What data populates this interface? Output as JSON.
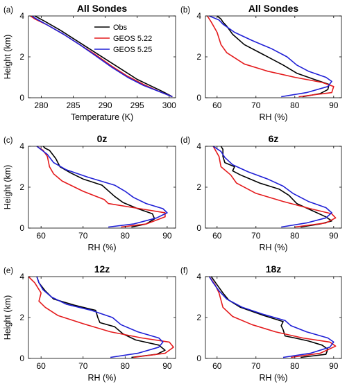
{
  "colors": {
    "Obs": "#000000",
    "GEOS 5.22": "#e41a1c",
    "GEOS 5.25": "#1f1fd6"
  },
  "legend": [
    "Obs",
    "GEOS 5.22",
    "GEOS 5.25"
  ],
  "chart_data": [
    {
      "type": "line",
      "letter": "(a)",
      "title": "All Sondes",
      "xlabel": "Temperature (K)",
      "ylabel": "Height (km)",
      "xlim": [
        278,
        301
      ],
      "ylim": [
        0,
        4
      ],
      "xticks": [
        280,
        285,
        290,
        295,
        300
      ],
      "yticks": [
        0,
        2,
        4
      ],
      "legend": true,
      "series": [
        {
          "name": "Obs",
          "x": [
            300.5,
            299.0,
            297.0,
            295.0,
            293.0,
            290.5,
            288.0,
            285.5,
            283.0,
            280.5,
            279.0
          ],
          "y": [
            0.05,
            0.3,
            0.6,
            0.9,
            1.3,
            1.8,
            2.3,
            2.8,
            3.3,
            3.75,
            4.0
          ]
        },
        {
          "name": "GEOS 5.22",
          "x": [
            300.5,
            298.5,
            296.0,
            293.5,
            291.0,
            288.5,
            286.0,
            283.5,
            281.0,
            279.0,
            278.3
          ],
          "y": [
            0.05,
            0.3,
            0.65,
            1.05,
            1.55,
            2.1,
            2.6,
            3.1,
            3.55,
            3.85,
            4.0
          ]
        },
        {
          "name": "GEOS 5.25",
          "x": [
            300.5,
            298.5,
            296.0,
            293.5,
            291.0,
            288.5,
            286.0,
            283.5,
            281.0,
            279.0,
            278.6
          ],
          "y": [
            0.05,
            0.3,
            0.6,
            1.0,
            1.5,
            2.05,
            2.6,
            3.1,
            3.55,
            3.9,
            4.0
          ]
        }
      ]
    },
    {
      "type": "line",
      "letter": "(b)",
      "title": "All Sondes",
      "xlabel": "RH (%)",
      "ylabel": "",
      "xlim": [
        57,
        92
      ],
      "ylim": [
        0,
        4
      ],
      "xticks": [
        60,
        70,
        80,
        90
      ],
      "yticks": [
        0,
        2,
        4
      ],
      "legend": false,
      "series": [
        {
          "name": "Obs",
          "x": [
            82.0,
            86.5,
            88.5,
            88.8,
            85.0,
            80.5,
            77.0,
            72.0,
            67.0,
            64.0,
            62.5,
            61.5,
            61.0,
            60.0
          ],
          "y": [
            0.05,
            0.2,
            0.4,
            0.65,
            0.9,
            1.2,
            1.6,
            2.1,
            2.6,
            3.1,
            3.5,
            3.7,
            3.85,
            4.0
          ]
        },
        {
          "name": "GEOS 5.22",
          "x": [
            81.0,
            89.5,
            90.0,
            87.0,
            80.0,
            73.0,
            67.0,
            62.5,
            61.0,
            60.5,
            60.0,
            58.5,
            57.5
          ],
          "y": [
            0.05,
            0.25,
            0.55,
            0.75,
            1.0,
            1.3,
            1.65,
            2.2,
            2.6,
            2.9,
            3.2,
            3.7,
            4.0
          ]
        },
        {
          "name": "GEOS 5.25",
          "x": [
            76.5,
            83.0,
            88.5,
            89.5,
            88.0,
            83.5,
            80.5,
            78.0,
            74.0,
            69.0,
            64.5,
            61.5,
            60.5,
            58.0
          ],
          "y": [
            0.05,
            0.25,
            0.55,
            0.8,
            1.0,
            1.3,
            1.6,
            2.0,
            2.4,
            2.8,
            3.2,
            3.6,
            3.8,
            4.0
          ]
        }
      ]
    },
    {
      "type": "line",
      "letter": "(c)",
      "title": "0z",
      "xlabel": "RH (%)",
      "ylabel": "Height (km)",
      "xlim": [
        57,
        92
      ],
      "ylim": [
        0,
        4
      ],
      "xticks": [
        60,
        70,
        80,
        90
      ],
      "yticks": [
        0,
        2,
        4
      ],
      "legend": false,
      "series": [
        {
          "name": "Obs",
          "x": [
            81.5,
            85.0,
            87.0,
            86.5,
            83.0,
            79.5,
            77.5,
            74.5,
            70.0,
            67.0,
            64.5,
            63.5,
            62.0,
            61.0,
            60.5
          ],
          "y": [
            0.05,
            0.2,
            0.45,
            0.7,
            0.95,
            1.25,
            1.55,
            2.1,
            2.4,
            2.7,
            3.0,
            3.4,
            3.8,
            3.9,
            4.0
          ]
        },
        {
          "name": "GEOS 5.22",
          "x": [
            79.0,
            85.0,
            89.5,
            89.5,
            83.5,
            76.0,
            75.0,
            70.0,
            65.0,
            63.0,
            62.0,
            61.5,
            60.5,
            59.0
          ],
          "y": [
            0.05,
            0.2,
            0.55,
            0.75,
            0.95,
            1.2,
            1.4,
            1.8,
            2.3,
            2.65,
            3.0,
            3.5,
            3.8,
            4.0
          ]
        },
        {
          "name": "GEOS 5.25",
          "x": [
            76.0,
            82.0,
            87.5,
            90.0,
            89.0,
            85.0,
            82.0,
            80.0,
            77.5,
            71.0,
            66.0,
            63.0,
            61.5,
            59.0
          ],
          "y": [
            0.05,
            0.2,
            0.5,
            0.75,
            0.95,
            1.2,
            1.5,
            1.8,
            2.1,
            2.5,
            2.85,
            3.2,
            3.6,
            4.0
          ]
        }
      ]
    },
    {
      "type": "line",
      "letter": "(d)",
      "title": "6z",
      "xlabel": "RH (%)",
      "ylabel": "",
      "xlim": [
        57,
        92
      ],
      "ylim": [
        0,
        4
      ],
      "xticks": [
        60,
        70,
        80,
        90
      ],
      "yticks": [
        0,
        2,
        4
      ],
      "legend": false,
      "series": [
        {
          "name": "Obs",
          "x": [
            81.5,
            86.5,
            89.5,
            88.0,
            84.5,
            80.5,
            78.5,
            76.0,
            71.0,
            66.0,
            64.0,
            64.5,
            62.0,
            61.5,
            61.5,
            61.0
          ],
          "y": [
            0.05,
            0.2,
            0.35,
            0.55,
            0.85,
            1.2,
            1.6,
            1.9,
            2.2,
            2.6,
            2.8,
            3.0,
            3.2,
            3.5,
            3.85,
            4.0
          ]
        },
        {
          "name": "GEOS 5.22",
          "x": [
            80.0,
            88.0,
            90.5,
            89.5,
            84.0,
            77.0,
            70.0,
            65.0,
            63.5,
            61.0,
            60.5,
            59.0
          ],
          "y": [
            0.05,
            0.25,
            0.5,
            0.7,
            0.95,
            1.3,
            1.7,
            2.2,
            2.6,
            3.0,
            3.5,
            4.0
          ]
        },
        {
          "name": "GEOS 5.25",
          "x": [
            76.5,
            83.0,
            88.0,
            89.5,
            88.0,
            83.5,
            79.5,
            77.0,
            73.0,
            68.0,
            64.0,
            62.0,
            61.0,
            59.0
          ],
          "y": [
            0.05,
            0.25,
            0.5,
            0.75,
            1.0,
            1.3,
            1.7,
            2.05,
            2.4,
            2.75,
            3.1,
            3.45,
            3.75,
            4.0
          ]
        }
      ]
    },
    {
      "type": "line",
      "letter": "(e)",
      "title": "12z",
      "xlabel": "RH (%)",
      "ylabel": "Height (km)",
      "xlim": [
        57,
        92
      ],
      "ylim": [
        0,
        4
      ],
      "xticks": [
        60,
        70,
        80,
        90
      ],
      "yticks": [
        0,
        2,
        4
      ],
      "legend": false,
      "series": [
        {
          "name": "Obs",
          "x": [
            81.5,
            87.5,
            89.5,
            88.0,
            82.5,
            79.5,
            77.5,
            74.0,
            73.5,
            73.0,
            68.0,
            63.0,
            61.0,
            59.5,
            59.0
          ],
          "y": [
            0.05,
            0.2,
            0.4,
            0.65,
            0.9,
            1.2,
            1.55,
            1.75,
            2.0,
            2.35,
            2.6,
            2.9,
            3.3,
            3.7,
            4.0
          ]
        },
        {
          "name": "GEOS 5.22",
          "x": [
            82.0,
            89.5,
            91.5,
            90.5,
            84.0,
            76.5,
            70.0,
            64.0,
            61.0,
            59.5,
            60.0,
            58.5,
            57.0
          ],
          "y": [
            0.05,
            0.25,
            0.55,
            0.8,
            1.0,
            1.3,
            1.7,
            2.1,
            2.5,
            2.8,
            3.2,
            3.7,
            4.0
          ]
        },
        {
          "name": "GEOS 5.25",
          "x": [
            76.5,
            83.0,
            88.0,
            89.0,
            88.0,
            83.0,
            79.0,
            77.0,
            72.0,
            66.0,
            62.5,
            60.5,
            59.5,
            59.0
          ],
          "y": [
            0.05,
            0.25,
            0.55,
            0.8,
            1.0,
            1.3,
            1.65,
            2.0,
            2.35,
            2.65,
            3.0,
            3.35,
            3.7,
            4.0
          ]
        }
      ]
    },
    {
      "type": "line",
      "letter": "(f)",
      "title": "18z",
      "xlabel": "RH (%)",
      "ylabel": "",
      "xlim": [
        57,
        92
      ],
      "ylim": [
        0,
        4
      ],
      "xticks": [
        60,
        70,
        80,
        90
      ],
      "yticks": [
        0,
        2,
        4
      ],
      "legend": false,
      "series": [
        {
          "name": "Obs",
          "x": [
            81.5,
            88.0,
            88.5,
            87.0,
            83.5,
            80.0,
            77.5,
            77.0,
            76.5,
            77.0,
            72.0,
            66.0,
            63.0,
            61.5,
            60.0,
            58.5
          ],
          "y": [
            0.05,
            0.2,
            0.45,
            0.65,
            0.85,
            1.0,
            1.1,
            1.4,
            1.6,
            1.8,
            2.1,
            2.5,
            2.85,
            3.2,
            3.6,
            4.0
          ]
        },
        {
          "name": "GEOS 5.22",
          "x": [
            79.0,
            86.5,
            90.5,
            89.0,
            82.0,
            75.0,
            69.0,
            64.0,
            61.5,
            61.0,
            60.5,
            59.5,
            58.0
          ],
          "y": [
            0.05,
            0.25,
            0.6,
            0.8,
            1.0,
            1.3,
            1.65,
            2.05,
            2.5,
            2.85,
            3.2,
            3.6,
            4.0
          ]
        },
        {
          "name": "GEOS 5.25",
          "x": [
            77.0,
            84.0,
            89.0,
            90.0,
            88.5,
            83.0,
            79.0,
            77.5,
            72.0,
            66.5,
            62.5,
            60.5,
            59.0,
            58.0
          ],
          "y": [
            0.05,
            0.25,
            0.55,
            0.8,
            1.0,
            1.3,
            1.6,
            1.85,
            2.15,
            2.5,
            2.9,
            3.3,
            3.7,
            4.0
          ]
        }
      ]
    }
  ]
}
